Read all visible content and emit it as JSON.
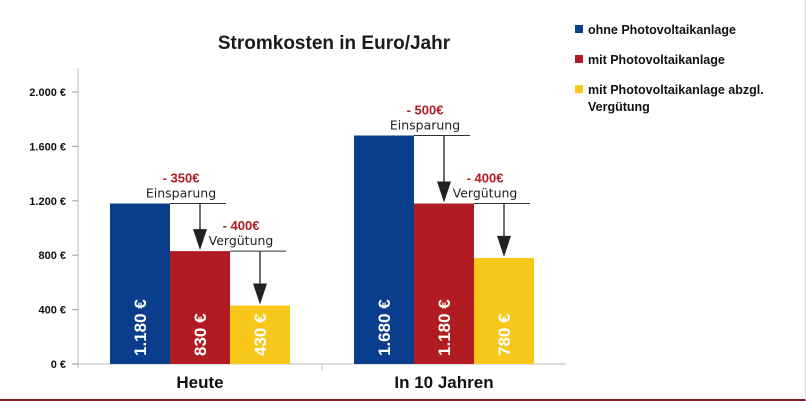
{
  "chart_data": {
    "type": "bar",
    "title": "Stromkosten in Euro/Jahr",
    "categories": [
      "Heute",
      "In 10 Jahren"
    ],
    "series": [
      {
        "name": "ohne Photovoltaikanlage",
        "color": "#0a3d8c",
        "values": [
          1180,
          1680
        ],
        "labels": [
          "1.180 €",
          "1.680 €"
        ]
      },
      {
        "name": "mit Photovoltaikanlage",
        "color": "#b01c22",
        "values": [
          830,
          1180
        ],
        "labels": [
          "830 €",
          "1.180 €"
        ]
      },
      {
        "name": "mit Photovoltaikanlage abzgl. Vergütung",
        "color": "#f7c81a",
        "values": [
          430,
          780
        ],
        "labels": [
          "430 €",
          "780 €"
        ]
      }
    ],
    "yticks": [
      0,
      400,
      800,
      1200,
      1600,
      2000
    ],
    "ytick_labels": [
      "0 €",
      "400 €",
      "800 €",
      "1.200 €",
      "1.600 €",
      "2.000 €"
    ],
    "ylim": [
      0,
      2000
    ],
    "legend_position": "top-right",
    "annotations": [
      {
        "category": 0,
        "from_series": 0,
        "to_series": 1,
        "delta": "- 350€",
        "text": "Einsparung"
      },
      {
        "category": 0,
        "from_series": 1,
        "to_series": 2,
        "delta": "- 400€",
        "text": "Vergütung"
      },
      {
        "category": 1,
        "from_series": 0,
        "to_series": 1,
        "delta": "- 500€",
        "text": "Einsparung"
      },
      {
        "category": 1,
        "from_series": 1,
        "to_series": 2,
        "delta": "- 400€",
        "text": "Vergütung"
      }
    ]
  },
  "legend_lines": [
    [
      "ohne Photovoltaikanlage"
    ],
    [
      "mit Photovoltaikanlage"
    ],
    [
      "mit Photovoltaikanlage abzgl.",
      "Vergütung"
    ]
  ]
}
